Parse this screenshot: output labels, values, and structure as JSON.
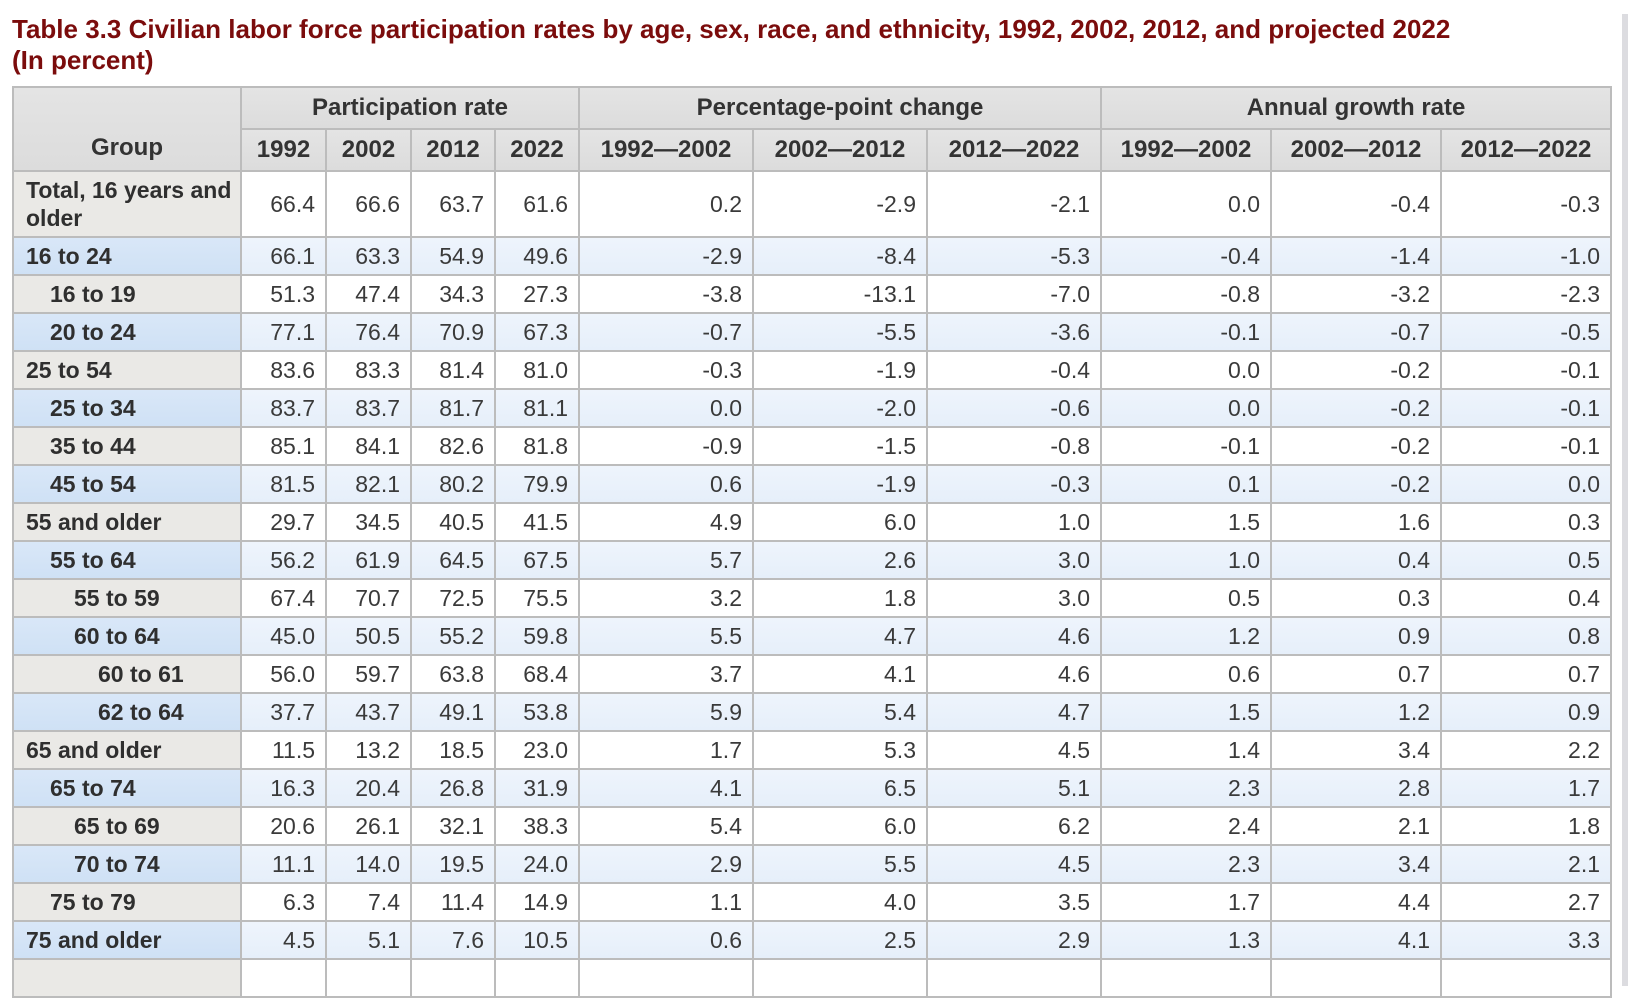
{
  "page": {
    "title_line1": "Table 3.3 Civilian labor force participation rates by age, sex, race, and ethnicity, 1992, 2002, 2012, and projected 2022",
    "title_line2": "(In percent)"
  },
  "colors": {
    "title_maroon": "#7b0c0c",
    "header_bg": "#e0e0e0",
    "gray_row_label_bg": "#eae9e6",
    "gray_row_data_bg": "#ffffff",
    "blue_row_label_bg": "#d3e4f6",
    "blue_row_data_bg": "#e9f1fb",
    "border_heavy": "#8f8f8f",
    "border_light": "#bcbcbc"
  },
  "table": {
    "corner_header": "Group",
    "column_groups": [
      {
        "label": "Participation rate",
        "columns": [
          "1992",
          "2002",
          "2012",
          "2022"
        ]
      },
      {
        "label": "Percentage-point change",
        "columns": [
          "1992—2002",
          "2002—2012",
          "2012—2022"
        ]
      },
      {
        "label": "Annual growth rate",
        "columns": [
          "1992—2002",
          "2002—2012",
          "2012—2022"
        ]
      }
    ],
    "rows": [
      {
        "label": "Total, 16 years and older",
        "indent": 0,
        "shade": "gray",
        "values": [
          "66.4",
          "66.6",
          "63.7",
          "61.6",
          "0.2",
          "-2.9",
          "-2.1",
          "0.0",
          "-0.4",
          "-0.3"
        ]
      },
      {
        "label": "16 to 24",
        "indent": 0,
        "shade": "blue",
        "values": [
          "66.1",
          "63.3",
          "54.9",
          "49.6",
          "-2.9",
          "-8.4",
          "-5.3",
          "-0.4",
          "-1.4",
          "-1.0"
        ]
      },
      {
        "label": "16 to 19",
        "indent": 1,
        "shade": "gray",
        "values": [
          "51.3",
          "47.4",
          "34.3",
          "27.3",
          "-3.8",
          "-13.1",
          "-7.0",
          "-0.8",
          "-3.2",
          "-2.3"
        ]
      },
      {
        "label": "20 to 24",
        "indent": 1,
        "shade": "blue",
        "values": [
          "77.1",
          "76.4",
          "70.9",
          "67.3",
          "-0.7",
          "-5.5",
          "-3.6",
          "-0.1",
          "-0.7",
          "-0.5"
        ]
      },
      {
        "label": "25 to 54",
        "indent": 0,
        "shade": "gray",
        "values": [
          "83.6",
          "83.3",
          "81.4",
          "81.0",
          "-0.3",
          "-1.9",
          "-0.4",
          "0.0",
          "-0.2",
          "-0.1"
        ]
      },
      {
        "label": "25 to 34",
        "indent": 1,
        "shade": "blue",
        "values": [
          "83.7",
          "83.7",
          "81.7",
          "81.1",
          "0.0",
          "-2.0",
          "-0.6",
          "0.0",
          "-0.2",
          "-0.1"
        ]
      },
      {
        "label": "35 to 44",
        "indent": 1,
        "shade": "gray",
        "values": [
          "85.1",
          "84.1",
          "82.6",
          "81.8",
          "-0.9",
          "-1.5",
          "-0.8",
          "-0.1",
          "-0.2",
          "-0.1"
        ]
      },
      {
        "label": "45 to 54",
        "indent": 1,
        "shade": "blue",
        "values": [
          "81.5",
          "82.1",
          "80.2",
          "79.9",
          "0.6",
          "-1.9",
          "-0.3",
          "0.1",
          "-0.2",
          "0.0"
        ]
      },
      {
        "label": "55 and older",
        "indent": 0,
        "shade": "gray",
        "values": [
          "29.7",
          "34.5",
          "40.5",
          "41.5",
          "4.9",
          "6.0",
          "1.0",
          "1.5",
          "1.6",
          "0.3"
        ]
      },
      {
        "label": "55 to 64",
        "indent": 1,
        "shade": "blue",
        "values": [
          "56.2",
          "61.9",
          "64.5",
          "67.5",
          "5.7",
          "2.6",
          "3.0",
          "1.0",
          "0.4",
          "0.5"
        ]
      },
      {
        "label": "55 to 59",
        "indent": 2,
        "shade": "gray",
        "values": [
          "67.4",
          "70.7",
          "72.5",
          "75.5",
          "3.2",
          "1.8",
          "3.0",
          "0.5",
          "0.3",
          "0.4"
        ]
      },
      {
        "label": "60 to 64",
        "indent": 2,
        "shade": "blue",
        "values": [
          "45.0",
          "50.5",
          "55.2",
          "59.8",
          "5.5",
          "4.7",
          "4.6",
          "1.2",
          "0.9",
          "0.8"
        ]
      },
      {
        "label": "60 to 61",
        "indent": 3,
        "shade": "gray",
        "values": [
          "56.0",
          "59.7",
          "63.8",
          "68.4",
          "3.7",
          "4.1",
          "4.6",
          "0.6",
          "0.7",
          "0.7"
        ]
      },
      {
        "label": "62 to 64",
        "indent": 3,
        "shade": "blue",
        "values": [
          "37.7",
          "43.7",
          "49.1",
          "53.8",
          "5.9",
          "5.4",
          "4.7",
          "1.5",
          "1.2",
          "0.9"
        ]
      },
      {
        "label": "65 and older",
        "indent": 0,
        "shade": "gray",
        "values": [
          "11.5",
          "13.2",
          "18.5",
          "23.0",
          "1.7",
          "5.3",
          "4.5",
          "1.4",
          "3.4",
          "2.2"
        ]
      },
      {
        "label": "65 to 74",
        "indent": 1,
        "shade": "blue",
        "values": [
          "16.3",
          "20.4",
          "26.8",
          "31.9",
          "4.1",
          "6.5",
          "5.1",
          "2.3",
          "2.8",
          "1.7"
        ]
      },
      {
        "label": "65 to 69",
        "indent": 2,
        "shade": "gray",
        "values": [
          "20.6",
          "26.1",
          "32.1",
          "38.3",
          "5.4",
          "6.0",
          "6.2",
          "2.4",
          "2.1",
          "1.8"
        ]
      },
      {
        "label": "70 to 74",
        "indent": 2,
        "shade": "blue",
        "values": [
          "11.1",
          "14.0",
          "19.5",
          "24.0",
          "2.9",
          "5.5",
          "4.5",
          "2.3",
          "3.4",
          "2.1"
        ]
      },
      {
        "label": "75 to 79",
        "indent": 1,
        "shade": "gray",
        "values": [
          "6.3",
          "7.4",
          "11.4",
          "14.9",
          "1.1",
          "4.0",
          "3.5",
          "1.7",
          "4.4",
          "2.7"
        ]
      },
      {
        "label": "75 and older",
        "indent": 0,
        "shade": "blue",
        "values": [
          "4.5",
          "5.1",
          "7.6",
          "10.5",
          "0.6",
          "2.5",
          "2.9",
          "1.3",
          "4.1",
          "3.3"
        ]
      },
      {
        "label": "",
        "indent": 0,
        "shade": "gray",
        "values": [
          "",
          "",
          "",
          "",
          "",
          "",
          "",
          "",
          "",
          ""
        ]
      }
    ]
  }
}
